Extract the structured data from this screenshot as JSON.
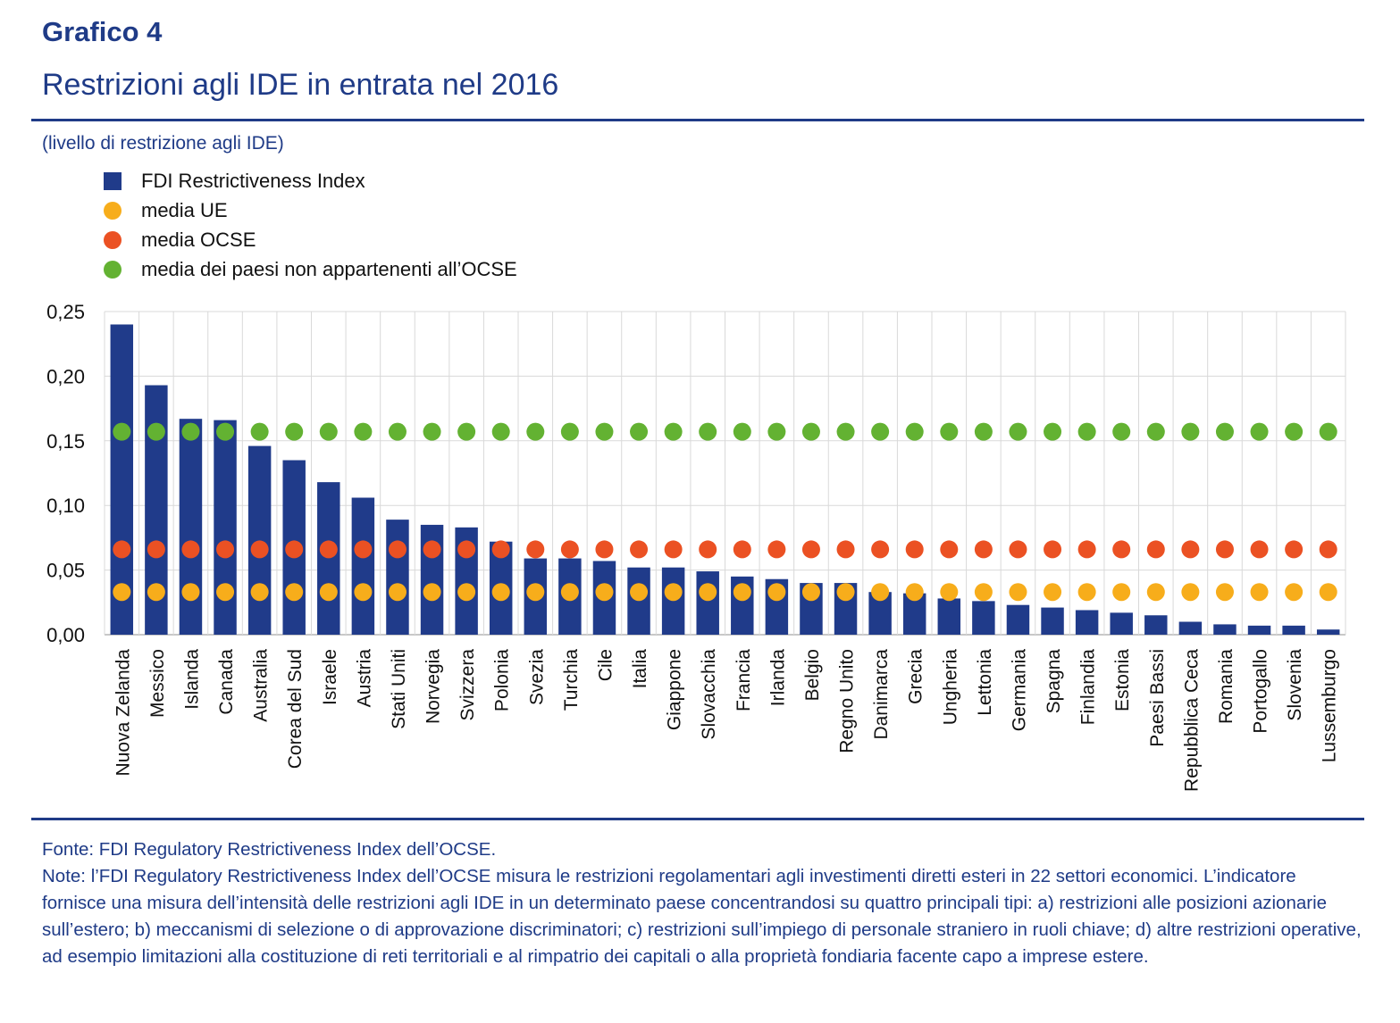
{
  "header": {
    "figure_number": "Grafico 4",
    "title": "Restrizioni agli IDE in entrata nel 2016",
    "subtitle": "(livello di restrizione agli IDE)"
  },
  "legend": [
    {
      "label": "FDI Restrictiveness Index",
      "shape": "square",
      "color": "#203b8a"
    },
    {
      "label": "media UE",
      "shape": "circle",
      "color": "#f7ad1b"
    },
    {
      "label": "media OCSE",
      "shape": "circle",
      "color": "#eb5123"
    },
    {
      "label": "media dei paesi non appartenenti all’OCSE",
      "shape": "circle",
      "color": "#63b232"
    }
  ],
  "chart_data": {
    "type": "bar",
    "title": "Restrizioni agli IDE in entrata nel 2016",
    "xlabel": "",
    "ylabel": "livello di restrizione agli IDE",
    "ylim": [
      0,
      0.25
    ],
    "yticks": [
      0,
      0.05,
      0.1,
      0.15,
      0.2,
      0.25
    ],
    "ytick_labels": [
      "0,00",
      "0,05",
      "0,10",
      "0,15",
      "0,20",
      "0,25"
    ],
    "grid": true,
    "legend_position": "top-left",
    "categories": [
      "Nuova Zelanda",
      "Messico",
      "Islanda",
      "Canada",
      "Australia",
      "Corea del Sud",
      "Israele",
      "Austria",
      "Stati Uniti",
      "Norvegia",
      "Svizzera",
      "Polonia",
      "Svezia",
      "Turchia",
      "Cile",
      "Italia",
      "Giappone",
      "Slovacchia",
      "Francia",
      "Irlanda",
      "Belgio",
      "Regno Unito",
      "Danimarca",
      "Grecia",
      "Ungheria",
      "Lettonia",
      "Germania",
      "Spagna",
      "Finlandia",
      "Estonia",
      "Paesi Bassi",
      "Repubblica Ceca",
      "Romania",
      "Portogallo",
      "Slovenia",
      "Lussemburgo"
    ],
    "series": [
      {
        "name": "FDI Restrictiveness Index",
        "kind": "bar",
        "color": "#203b8a",
        "values": [
          0.24,
          0.193,
          0.167,
          0.166,
          0.146,
          0.135,
          0.118,
          0.106,
          0.089,
          0.085,
          0.083,
          0.072,
          0.059,
          0.059,
          0.057,
          0.052,
          0.052,
          0.049,
          0.045,
          0.043,
          0.04,
          0.04,
          0.033,
          0.032,
          0.028,
          0.026,
          0.023,
          0.021,
          0.019,
          0.017,
          0.015,
          0.01,
          0.008,
          0.007,
          0.007,
          0.004
        ]
      },
      {
        "name": "media UE",
        "kind": "dot",
        "color": "#f7ad1b",
        "constant": 0.033
      },
      {
        "name": "media OCSE",
        "kind": "dot",
        "color": "#eb5123",
        "constant": 0.066
      },
      {
        "name": "media dei paesi non appartenenti all’OCSE",
        "kind": "dot",
        "color": "#63b232",
        "constant": 0.157
      }
    ]
  },
  "footer": {
    "source": "Fonte: FDI Regulatory Restrictiveness Index dell’OCSE.",
    "notes": "Note: l’FDI Regulatory Restrictiveness Index dell’OCSE misura le restrizioni regolamentari agli investimenti diretti esteri in 22 settori economici. L’indicatore fornisce una misura dell’intensità delle restrizioni agli IDE in un determinato paese concentrandosi su quattro principali tipi: a) restrizioni alle posizioni azionarie sull’estero; b) meccanismi di selezione o di approvazione discriminatori; c) restrizioni sull’impiego di personale straniero in ruoli chiave; d) altre restrizioni operative, ad esempio limitazioni alla costituzione di reti territoriali e al rimpatrio dei capitali o alla proprietà fondiaria facente capo a imprese estere."
  }
}
